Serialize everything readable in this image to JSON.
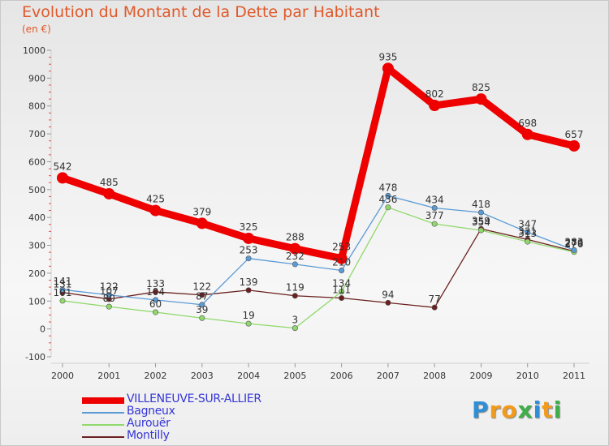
{
  "title": "Evolution du Montant de la Dette par Habitant",
  "subtitle": "(en €)",
  "logo_letters": [
    {
      "ch": "P",
      "color": "#2e8fd6"
    },
    {
      "ch": "r",
      "color": "#f29a1c"
    },
    {
      "ch": "o",
      "color": "#f29a1c"
    },
    {
      "ch": "x",
      "color": "#3fae49"
    },
    {
      "ch": "i",
      "color": "#2e8fd6"
    },
    {
      "ch": "t",
      "color": "#f29a1c"
    },
    {
      "ch": "i",
      "color": "#3fae49"
    }
  ],
  "chart_data": {
    "type": "line",
    "title": "Evolution du Montant de la Dette par Habitant",
    "subtitle": "(en €)",
    "x": [
      "2000",
      "2001",
      "2002",
      "2003",
      "2004",
      "2005",
      "2006",
      "2007",
      "2008",
      "2009",
      "2010",
      "2011"
    ],
    "ylim": [
      -100,
      1000
    ],
    "yticks": [
      -100,
      0,
      100,
      200,
      300,
      400,
      500,
      600,
      700,
      800,
      900,
      1000
    ],
    "grid": false,
    "legend_position": "bottom-left",
    "series": [
      {
        "name": "VILLENEUVE-SUR-ALLIER",
        "color": "#ee0000",
        "values": [
          542,
          485,
          425,
          379,
          325,
          288,
          253,
          935,
          802,
          825,
          698,
          657
        ]
      },
      {
        "name": "Bagneux",
        "color": "#5b9bd5",
        "values": [
          141,
          122,
          104,
          87,
          253,
          232,
          210,
          478,
          434,
          418,
          347,
          283
        ]
      },
      {
        "name": "Aurouër",
        "color": "#8fd96b",
        "values": [
          101,
          80,
          60,
          39,
          19,
          3,
          134,
          436,
          377,
          354,
          313,
          276
        ]
      },
      {
        "name": "Montilly",
        "color": "#6b1f1f",
        "values": [
          131,
          107,
          133,
          122,
          139,
          119,
          111,
          94,
          77,
          359,
          321,
          279
        ]
      }
    ]
  }
}
